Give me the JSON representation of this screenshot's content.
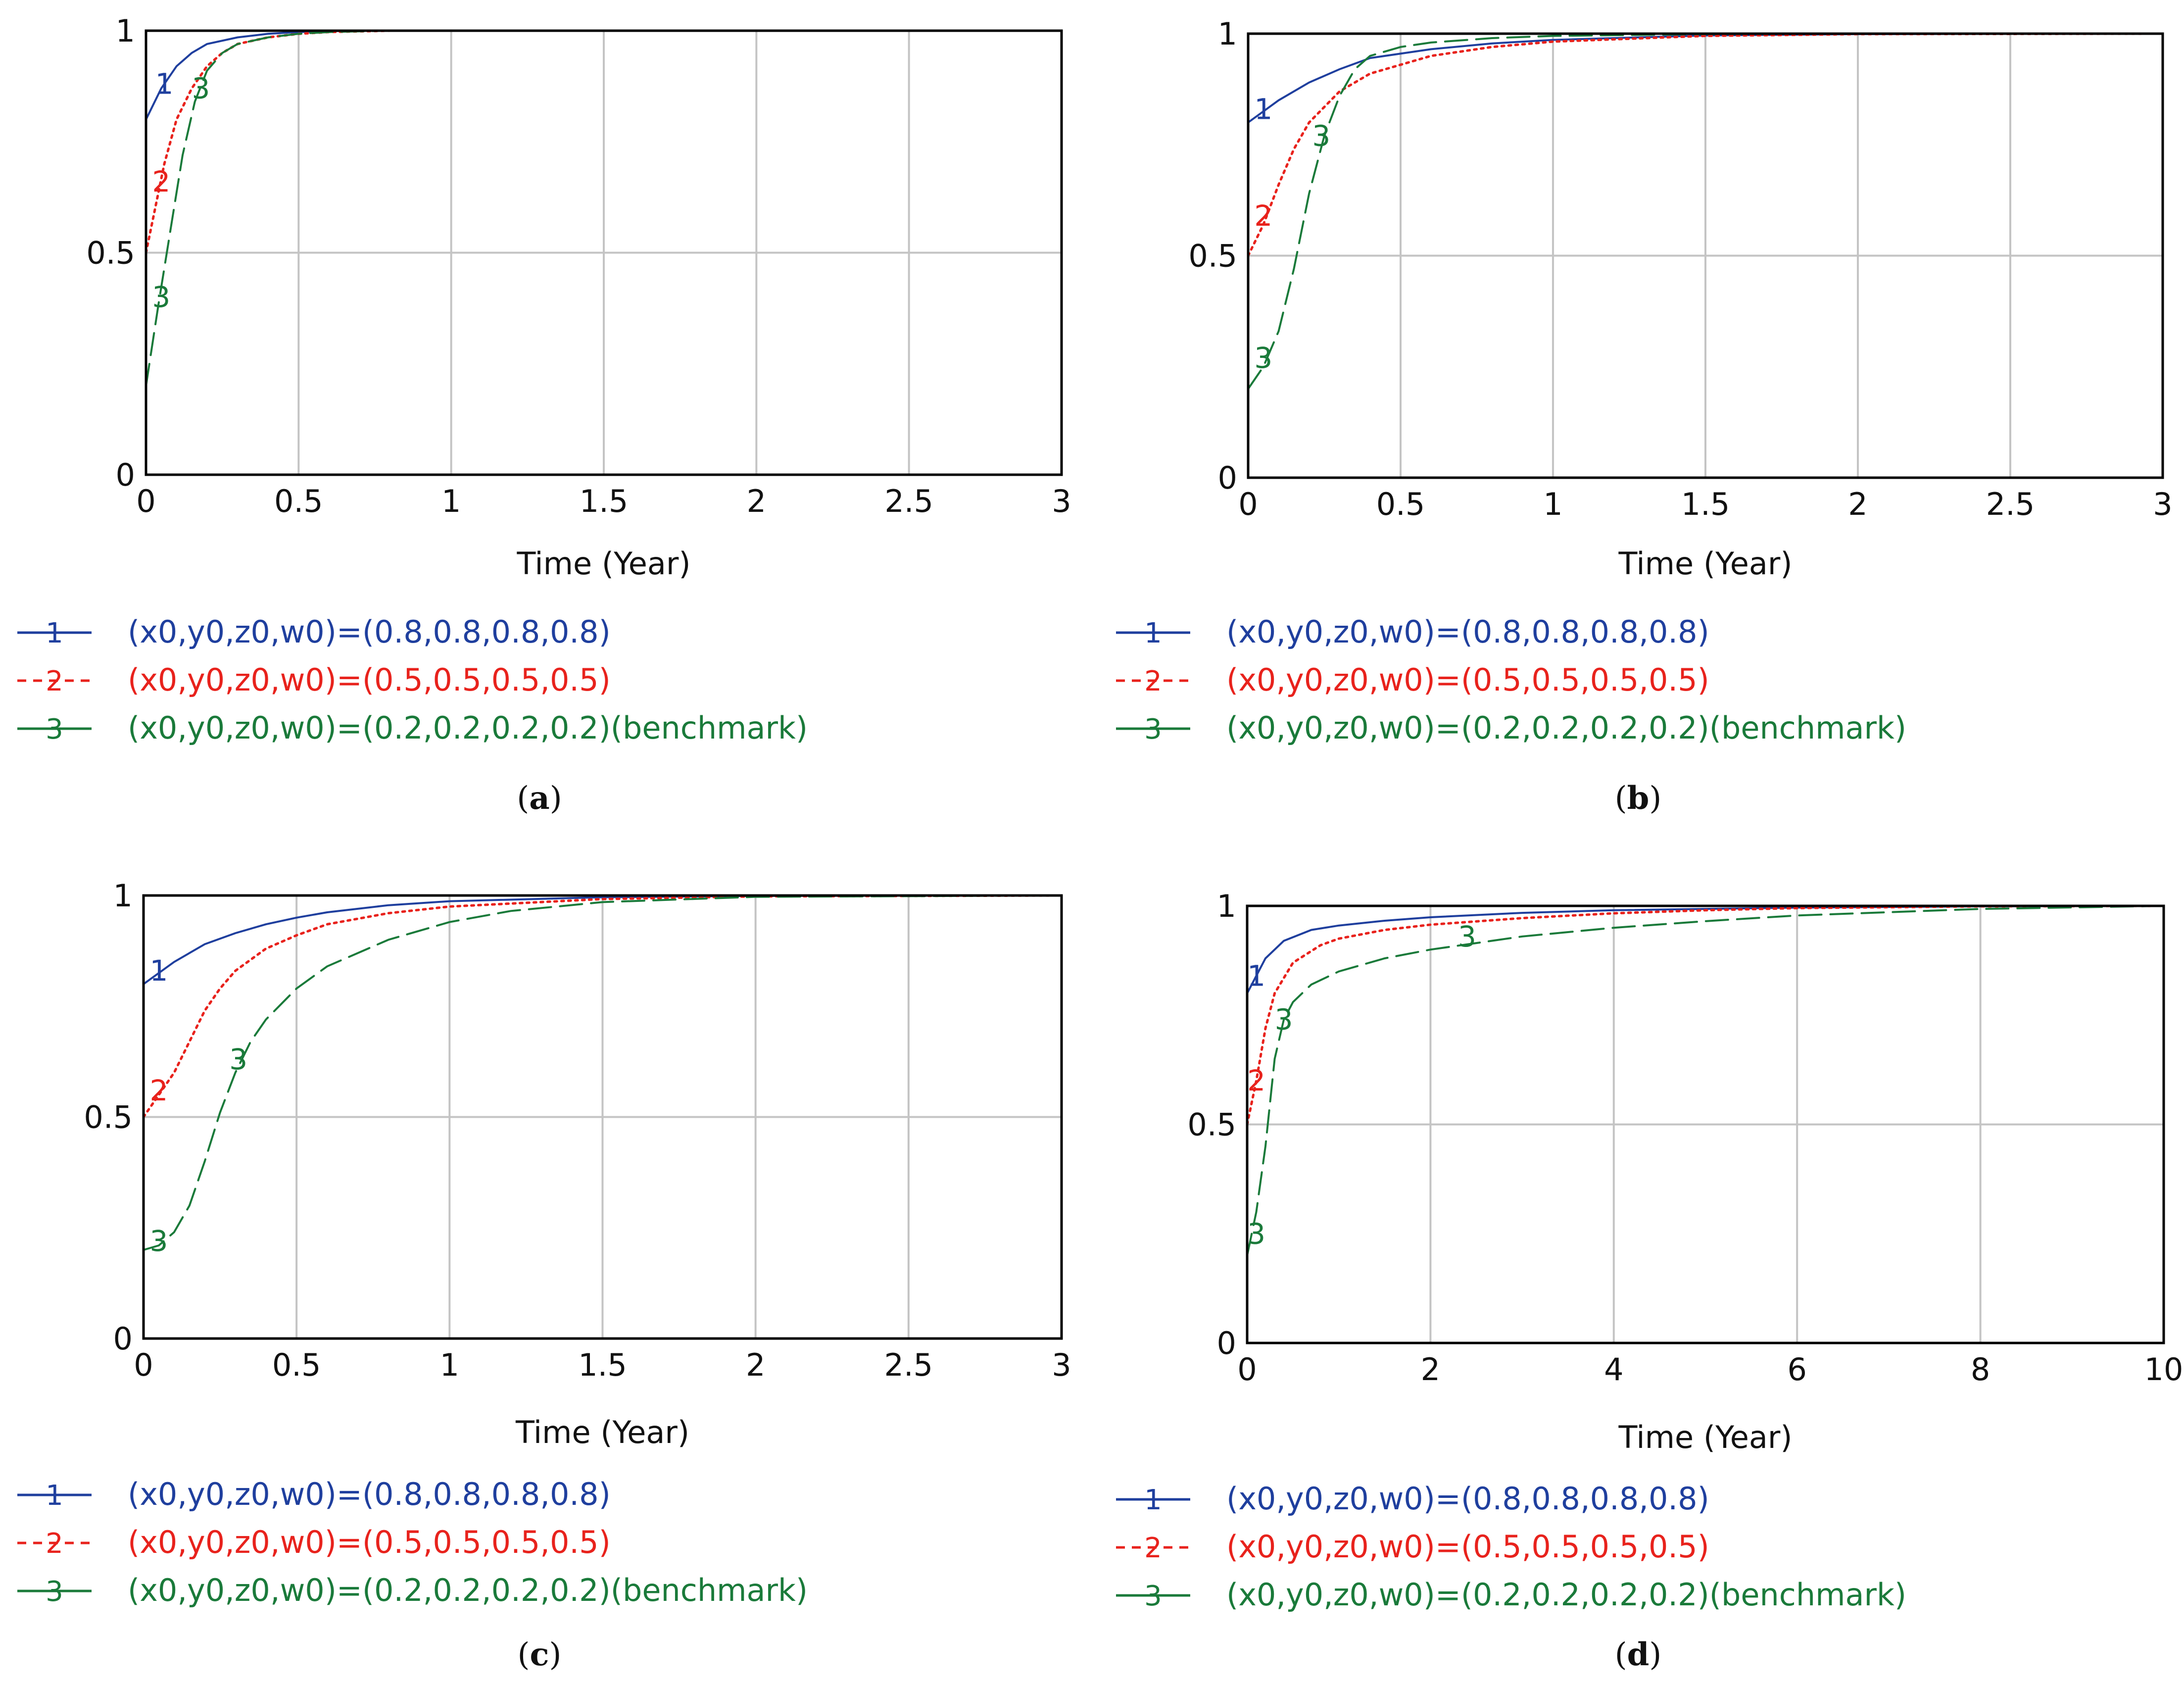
{
  "chart_data": [
    {
      "type": "line",
      "panel": "a",
      "caption": {
        "open": "(",
        "letter": "a",
        "close": ")"
      },
      "xlabel": "Time (Year)",
      "ylabel": "",
      "xlim": [
        0,
        3
      ],
      "ylim": [
        0,
        1
      ],
      "x_ticks": [
        0,
        0.5,
        1,
        1.5,
        2,
        2.5,
        3
      ],
      "x_tick_labels": [
        "0",
        "0.5",
        "1",
        "1.5",
        "2",
        "2.5",
        "3"
      ],
      "y_ticks": [
        0,
        0.5,
        1
      ],
      "y_tick_labels": [
        "0",
        "0.5",
        "1"
      ],
      "grid": true,
      "series": [
        {
          "name": "(x0,y0,z0,w0)=(0.8,0.8,0.8,0.8)",
          "marker": "1",
          "color": "#1f3f9e",
          "style": "solid",
          "x": [
            0,
            0.05,
            0.1,
            0.15,
            0.2,
            0.3,
            0.4,
            0.5,
            0.6,
            0.8,
            1,
            3
          ],
          "y": [
            0.8,
            0.87,
            0.92,
            0.95,
            0.97,
            0.985,
            0.993,
            0.997,
            0.999,
            1,
            1,
            1
          ],
          "label_at": [
            0.06,
            0.88
          ]
        },
        {
          "name": "(x0,y0,z0,w0)=(0.5,0.5,0.5,0.5)",
          "marker": "2",
          "color": "#e8221c",
          "style": "dotted",
          "x": [
            0,
            0.03,
            0.06,
            0.1,
            0.15,
            0.2,
            0.25,
            0.3,
            0.4,
            0.5,
            0.6,
            0.8,
            1,
            3
          ],
          "y": [
            0.5,
            0.6,
            0.7,
            0.8,
            0.87,
            0.92,
            0.95,
            0.97,
            0.985,
            0.993,
            0.997,
            1,
            1,
            1
          ],
          "label_at": [
            0.05,
            0.66
          ]
        },
        {
          "name": "(x0,y0,z0,w0)=(0.2,0.2,0.2,0.2)(benchmark)",
          "marker": "3",
          "color": "#1a7a3a",
          "style": "dashed",
          "x": [
            0,
            0.04,
            0.08,
            0.12,
            0.16,
            0.2,
            0.25,
            0.3,
            0.4,
            0.5,
            0.6,
            0.8,
            1,
            3
          ],
          "y": [
            0.2,
            0.38,
            0.55,
            0.72,
            0.84,
            0.91,
            0.95,
            0.97,
            0.985,
            0.993,
            0.997,
            1,
            1,
            1
          ],
          "label_at": [
            0.18,
            0.87
          ],
          "label2_at": [
            0.05,
            0.4
          ]
        }
      ]
    },
    {
      "type": "line",
      "panel": "b",
      "caption": {
        "open": "(",
        "letter": "b",
        "close": ")"
      },
      "xlabel": "Time (Year)",
      "ylabel": "",
      "xlim": [
        0,
        3
      ],
      "ylim": [
        0,
        1
      ],
      "x_ticks": [
        0,
        0.5,
        1,
        1.5,
        2,
        2.5,
        3
      ],
      "x_tick_labels": [
        "0",
        "0.5",
        "1",
        "1.5",
        "2",
        "2.5",
        "3"
      ],
      "y_ticks": [
        0,
        0.5,
        1
      ],
      "y_tick_labels": [
        "0",
        "0.5",
        "1"
      ],
      "grid": true,
      "series": [
        {
          "name": "(x0,y0,z0,w0)=(0.8,0.8,0.8,0.8)",
          "marker": "1",
          "color": "#1f3f9e",
          "style": "solid",
          "x": [
            0,
            0.1,
            0.2,
            0.3,
            0.4,
            0.6,
            0.8,
            1,
            1.5,
            2,
            3
          ],
          "y": [
            0.8,
            0.85,
            0.89,
            0.92,
            0.945,
            0.965,
            0.978,
            0.986,
            0.996,
            0.999,
            1
          ],
          "label_at": [
            0.05,
            0.83
          ]
        },
        {
          "name": "(x0,y0,z0,w0)=(0.5,0.5,0.5,0.5)",
          "marker": "2",
          "color": "#e8221c",
          "style": "dotted",
          "x": [
            0,
            0.05,
            0.1,
            0.15,
            0.2,
            0.3,
            0.4,
            0.6,
            0.8,
            1,
            1.5,
            2,
            3
          ],
          "y": [
            0.5,
            0.57,
            0.66,
            0.74,
            0.8,
            0.87,
            0.91,
            0.95,
            0.97,
            0.982,
            0.995,
            0.999,
            1
          ],
          "label_at": [
            0.05,
            0.59
          ]
        },
        {
          "name": "(x0,y0,z0,w0)=(0.2,0.2,0.2,0.2)(benchmark)",
          "marker": "3",
          "color": "#1a7a3a",
          "style": "dashed",
          "x": [
            0,
            0.05,
            0.1,
            0.15,
            0.2,
            0.25,
            0.3,
            0.35,
            0.4,
            0.5,
            0.6,
            0.8,
            1,
            1.5,
            2,
            3
          ],
          "y": [
            0.2,
            0.25,
            0.33,
            0.47,
            0.64,
            0.77,
            0.86,
            0.92,
            0.95,
            0.97,
            0.98,
            0.99,
            0.995,
            0.999,
            1,
            1
          ],
          "label_at": [
            0.05,
            0.27
          ],
          "label2_at": [
            0.24,
            0.77
          ]
        }
      ]
    },
    {
      "type": "line",
      "panel": "c",
      "caption": {
        "open": "(",
        "letter": "c",
        "close": ")"
      },
      "xlabel": "Time (Year)",
      "ylabel": "",
      "xlim": [
        0,
        3
      ],
      "ylim": [
        0,
        1
      ],
      "x_ticks": [
        0,
        0.5,
        1,
        1.5,
        2,
        2.5,
        3
      ],
      "x_tick_labels": [
        "0",
        "0.5",
        "1",
        "1.5",
        "2",
        "2.5",
        "3"
      ],
      "y_ticks": [
        0,
        0.5,
        1
      ],
      "y_tick_labels": [
        "0",
        "0.5",
        "1"
      ],
      "grid": true,
      "series": [
        {
          "name": "(x0,y0,z0,w0)=(0.8,0.8,0.8,0.8)",
          "marker": "1",
          "color": "#1f3f9e",
          "style": "solid",
          "x": [
            0,
            0.1,
            0.2,
            0.3,
            0.4,
            0.5,
            0.6,
            0.8,
            1,
            1.5,
            2,
            3
          ],
          "y": [
            0.8,
            0.85,
            0.89,
            0.915,
            0.935,
            0.95,
            0.962,
            0.978,
            0.987,
            0.996,
            0.999,
            1
          ],
          "label_at": [
            0.05,
            0.83
          ]
        },
        {
          "name": "(x0,y0,z0,w0)=(0.5,0.5,0.5,0.5)",
          "marker": "2",
          "color": "#e8221c",
          "style": "dotted",
          "x": [
            0,
            0.05,
            0.1,
            0.15,
            0.2,
            0.25,
            0.3,
            0.4,
            0.5,
            0.6,
            0.8,
            1,
            1.5,
            2,
            3
          ],
          "y": [
            0.5,
            0.55,
            0.6,
            0.67,
            0.74,
            0.79,
            0.83,
            0.88,
            0.91,
            0.935,
            0.96,
            0.975,
            0.992,
            0.998,
            1
          ],
          "label_at": [
            0.05,
            0.56
          ]
        },
        {
          "name": "(x0,y0,z0,w0)=(0.2,0.2,0.2,0.2)(benchmark)",
          "marker": "3",
          "color": "#1a7a3a",
          "style": "dashed",
          "x": [
            0,
            0.05,
            0.1,
            0.15,
            0.2,
            0.25,
            0.3,
            0.35,
            0.4,
            0.5,
            0.6,
            0.8,
            1,
            1.2,
            1.5,
            2,
            3
          ],
          "y": [
            0.2,
            0.21,
            0.24,
            0.3,
            0.4,
            0.51,
            0.6,
            0.67,
            0.72,
            0.79,
            0.84,
            0.9,
            0.94,
            0.965,
            0.985,
            0.997,
            1
          ],
          "label_at": [
            0.05,
            0.22
          ],
          "label2_at": [
            0.31,
            0.63
          ]
        }
      ]
    },
    {
      "type": "line",
      "panel": "d",
      "caption": {
        "open": "(",
        "letter": "d",
        "close": ")"
      },
      "xlabel": "Time (Year)",
      "ylabel": "",
      "xlim": [
        0,
        10
      ],
      "ylim": [
        0,
        1
      ],
      "x_ticks": [
        0,
        2,
        4,
        6,
        8,
        10
      ],
      "x_tick_labels": [
        "0",
        "2",
        "4",
        "6",
        "8",
        "10"
      ],
      "y_ticks": [
        0,
        0.5,
        1
      ],
      "y_tick_labels": [
        "0",
        "0.5",
        "1"
      ],
      "grid": true,
      "series": [
        {
          "name": "(x0,y0,z0,w0)=(0.8,0.8,0.8,0.8)",
          "marker": "1",
          "color": "#1f3f9e",
          "style": "solid",
          "x": [
            0,
            0.2,
            0.4,
            0.7,
            1,
            1.5,
            2,
            3,
            4,
            6,
            8,
            10
          ],
          "y": [
            0.8,
            0.88,
            0.92,
            0.945,
            0.955,
            0.966,
            0.974,
            0.984,
            0.99,
            0.996,
            0.999,
            1
          ],
          "label_at": [
            0.1,
            0.84
          ]
        },
        {
          "name": "(x0,y0,z0,w0)=(0.5,0.5,0.5,0.5)",
          "marker": "2",
          "color": "#e8221c",
          "style": "dotted",
          "x": [
            0,
            0.1,
            0.2,
            0.3,
            0.5,
            0.8,
            1,
            1.5,
            2,
            3,
            4,
            5,
            6,
            8,
            10
          ],
          "y": [
            0.5,
            0.6,
            0.72,
            0.8,
            0.87,
            0.91,
            0.925,
            0.945,
            0.957,
            0.972,
            0.983,
            0.99,
            0.995,
            0.999,
            1
          ],
          "label_at": [
            0.1,
            0.6
          ]
        },
        {
          "name": "(x0,y0,z0,w0)=(0.2,0.2,0.2,0.2)(benchmark)",
          "marker": "3",
          "color": "#1a7a3a",
          "style": "dashed",
          "x": [
            0,
            0.1,
            0.2,
            0.25,
            0.3,
            0.4,
            0.5,
            0.7,
            1,
            1.5,
            2,
            2.5,
            3,
            4,
            5,
            6,
            8,
            10
          ],
          "y": [
            0.2,
            0.3,
            0.45,
            0.55,
            0.65,
            0.74,
            0.78,
            0.82,
            0.85,
            0.88,
            0.9,
            0.915,
            0.93,
            0.95,
            0.965,
            0.978,
            0.993,
            1
          ],
          "label_at": [
            2.4,
            0.93
          ],
          "label2_at": [
            0.4,
            0.74
          ],
          "label3_at": [
            0.1,
            0.25
          ]
        }
      ]
    }
  ]
}
